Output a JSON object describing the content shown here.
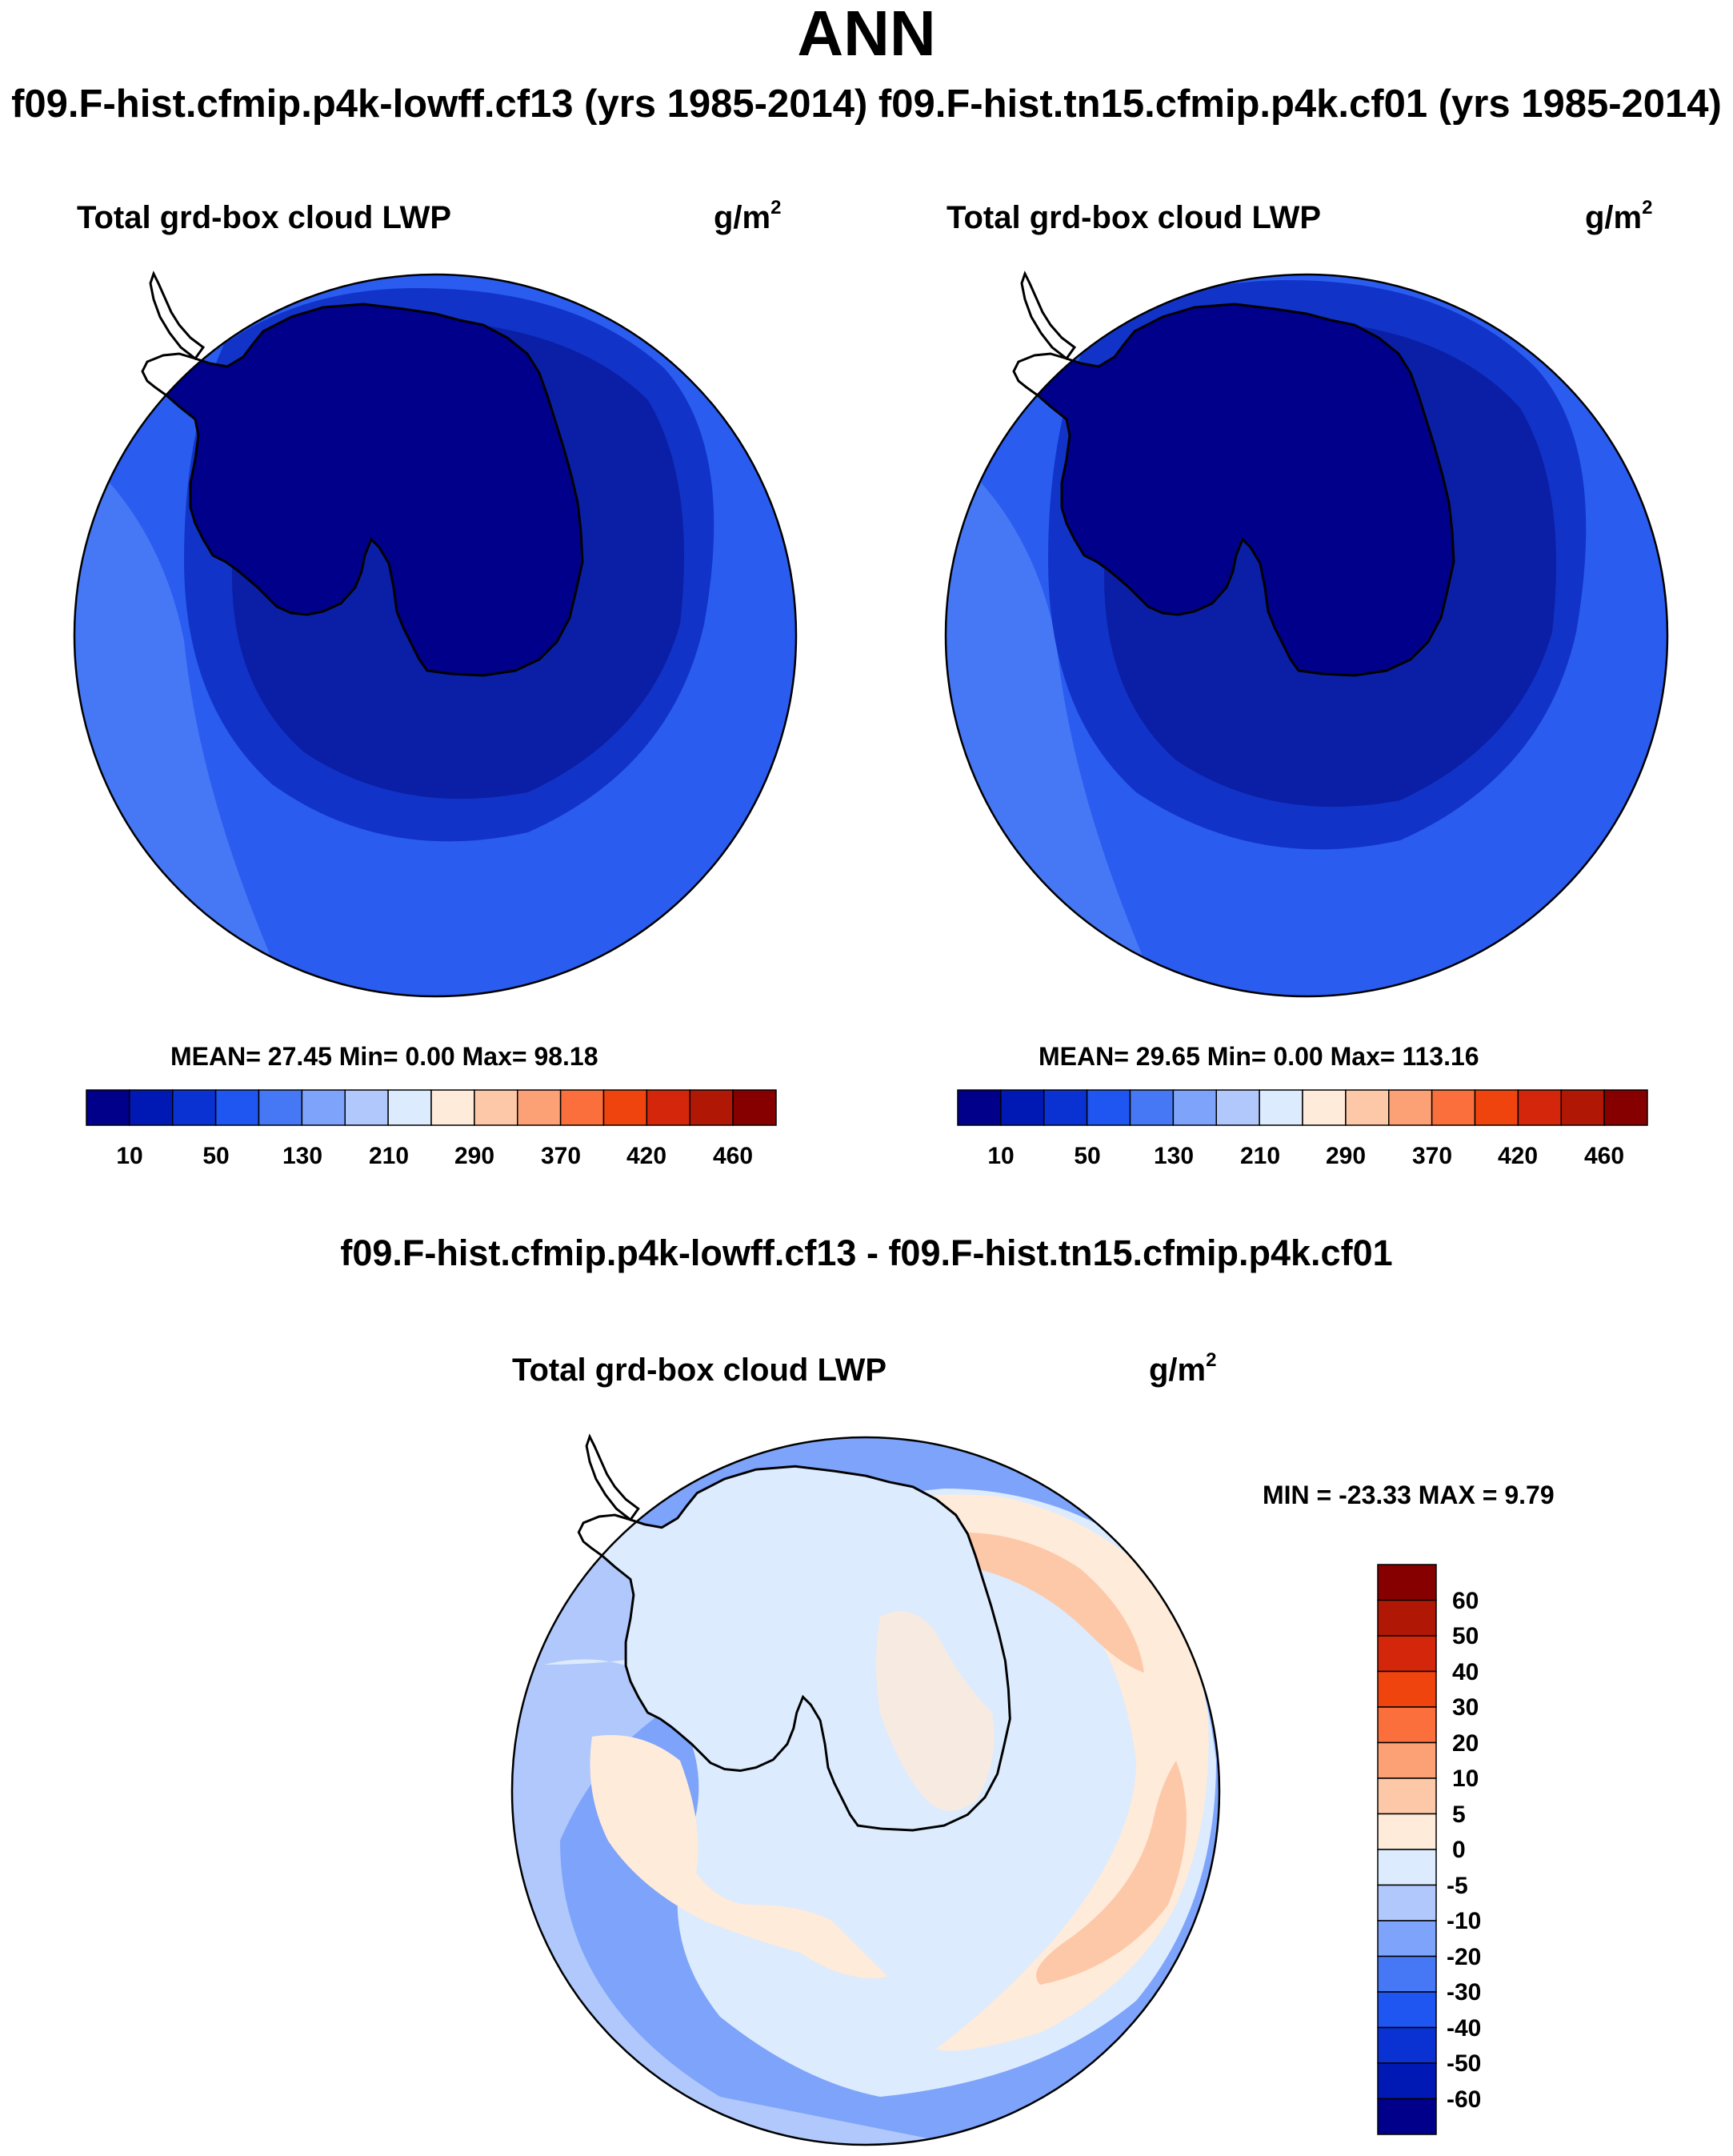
{
  "header": {
    "title": "ANN",
    "subtitle": "f09.F-hist.cfmip.p4k-lowff.cf13 (yrs 1985-2014)  f09.F-hist.tn15.cfmip.p4k.cf01 (yrs 1985-2014)"
  },
  "panels": [
    {
      "title": "Total grd-box cloud LWP",
      "units_base": "g/m",
      "units_exp": "2",
      "stats": "MEAN=  27.45  Min=   0.00  Max=  98.18"
    },
    {
      "title": "Total grd-box cloud LWP",
      "units_base": "g/m",
      "units_exp": "2",
      "stats": "MEAN=  29.65  Min=   0.00  Max= 113.16"
    }
  ],
  "colorbar": {
    "colors": [
      "#00008a",
      "#0019b4",
      "#0a32d2",
      "#1f55f0",
      "#4678f5",
      "#7ea3fa",
      "#b1c8fc",
      "#dcebfd",
      "#feebda",
      "#fdc8a8",
      "#fca176",
      "#fa6f3c",
      "#f0440f",
      "#d4260a",
      "#b01805",
      "#860000"
    ],
    "labels": [
      "10",
      "50",
      "130",
      "210",
      "290",
      "370",
      "420",
      "460"
    ]
  },
  "difference": {
    "title": "f09.F-hist.cfmip.p4k-lowff.cf13 - f09.F-hist.tn15.cfmip.p4k.cf01",
    "panel_title": "Total grd-box cloud LWP",
    "units_base": "g/m",
    "units_exp": "2",
    "minmax": "MIN = -23.33 MAX =   9.79",
    "colorbar": {
      "colors": [
        "#860000",
        "#b01805",
        "#d4260a",
        "#f0440f",
        "#fa6f3c",
        "#fca176",
        "#fdc8a8",
        "#feebda",
        "#dcebfd",
        "#b1c8fc",
        "#7ea3fa",
        "#4678f5",
        "#1f55f0",
        "#0a32d2",
        "#0019b4",
        "#00008a"
      ],
      "labels": [
        "60",
        "50",
        "40",
        "30",
        "20",
        "10",
        "5",
        "0",
        "-5",
        "-10",
        "-20",
        "-30",
        "-40",
        "-50",
        "-60"
      ]
    }
  },
  "map_colors": {
    "ocean_outer": "#2a5cf0",
    "ocean_outer_light": "#4678f5",
    "ring_mid": "#1233c8",
    "ring_inner": "#0a1fa5",
    "continent": "#00008a",
    "diff_base": "#dcebfd",
    "diff_light_blue": "#b1c8fc",
    "diff_mid_blue": "#7ea3fa",
    "diff_blue": "#4678f5",
    "diff_pos": "#feebda",
    "diff_pos2": "#fdc8a8",
    "coast": "#000000"
  }
}
